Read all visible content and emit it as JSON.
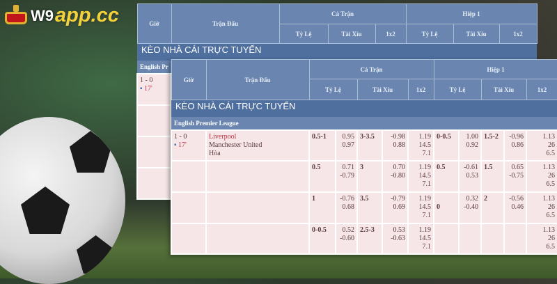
{
  "logo": {
    "w9": "W9",
    "app": "app.cc"
  },
  "table": {
    "headers": {
      "time": "Giờ",
      "match": "Trận Đấu",
      "full": "Cả Trận",
      "half": "Hiệp 1",
      "hdp": "Tỷ Lệ",
      "ou": "Tài Xỉu",
      "x12": "1x2"
    },
    "banner": "KÈO NHÀ CÁI TRỰC TUYẾN",
    "league": "English Premier League",
    "match": {
      "score": "1 - 0",
      "minute": "17'",
      "home": "Liverpool",
      "away": "Manchester United",
      "draw": "Hòa"
    },
    "rows": [
      {
        "ft_hdp": [
          "0.5-1"
        ],
        "ft_hdp_odds": [
          "0.95",
          "0.97"
        ],
        "ft_ou": [
          "3-3.5"
        ],
        "ft_ou_odds": [
          "-0.98",
          "0.88"
        ],
        "ft_1x2": [
          "1.19",
          "14.5",
          "7.1"
        ],
        "h1_hdp": [
          "0-0.5"
        ],
        "h1_hdp_odds": [
          "1.00",
          "0.92"
        ],
        "h1_ou": [
          "1.5-2"
        ],
        "h1_ou_odds": [
          "-0.96",
          "0.86"
        ],
        "h1_1x2": [
          "1.13",
          "26",
          "6.5"
        ]
      },
      {
        "ft_hdp": [
          "0.5"
        ],
        "ft_hdp_odds": [
          "0.71",
          "-0.79"
        ],
        "ft_ou": [
          "3"
        ],
        "ft_ou_odds": [
          "0.70",
          "-0.80"
        ],
        "ft_1x2": [
          "1.19",
          "14.5",
          "7.1"
        ],
        "h1_hdp": [
          "0.5"
        ],
        "h1_hdp_odds": [
          "-0.61",
          "0.53"
        ],
        "h1_ou": [
          "1.5"
        ],
        "h1_ou_odds": [
          "0.65",
          "-0.75"
        ],
        "h1_1x2": [
          "1.13",
          "26",
          "6.5"
        ]
      },
      {
        "ft_hdp": [
          "1"
        ],
        "ft_hdp_odds": [
          "-0.76",
          "0.68"
        ],
        "ft_ou": [
          "3.5"
        ],
        "ft_ou_odds": [
          "-0.79",
          "0.69"
        ],
        "ft_1x2": [
          "1.19",
          "14.5",
          "7.1"
        ],
        "h1_hdp": [
          "",
          "0"
        ],
        "h1_hdp_odds": [
          "0.32",
          "-0.40"
        ],
        "h1_ou": [
          "2"
        ],
        "h1_ou_odds": [
          "-0.56",
          "0.46"
        ],
        "h1_1x2": [
          "1.13",
          "26",
          "6.5"
        ]
      },
      {
        "ft_hdp": [
          "0-0.5"
        ],
        "ft_hdp_odds": [
          "0.52",
          "-0.60"
        ],
        "ft_ou": [
          "2.5-3"
        ],
        "ft_ou_odds": [
          "0.53",
          "-0.63"
        ],
        "ft_1x2": [
          "1.19",
          "14.5",
          "7.1"
        ],
        "h1_hdp": [],
        "h1_hdp_odds": [],
        "h1_ou": [],
        "h1_ou_odds": [],
        "h1_1x2": [
          "1.13",
          "26",
          "6.5"
        ]
      }
    ]
  },
  "colors": {
    "header": "#6a86b0",
    "banner": "#4f6f9e",
    "row": "#f6e6e8",
    "home": "#c03040",
    "logo_yellow": "#f2d23c"
  }
}
